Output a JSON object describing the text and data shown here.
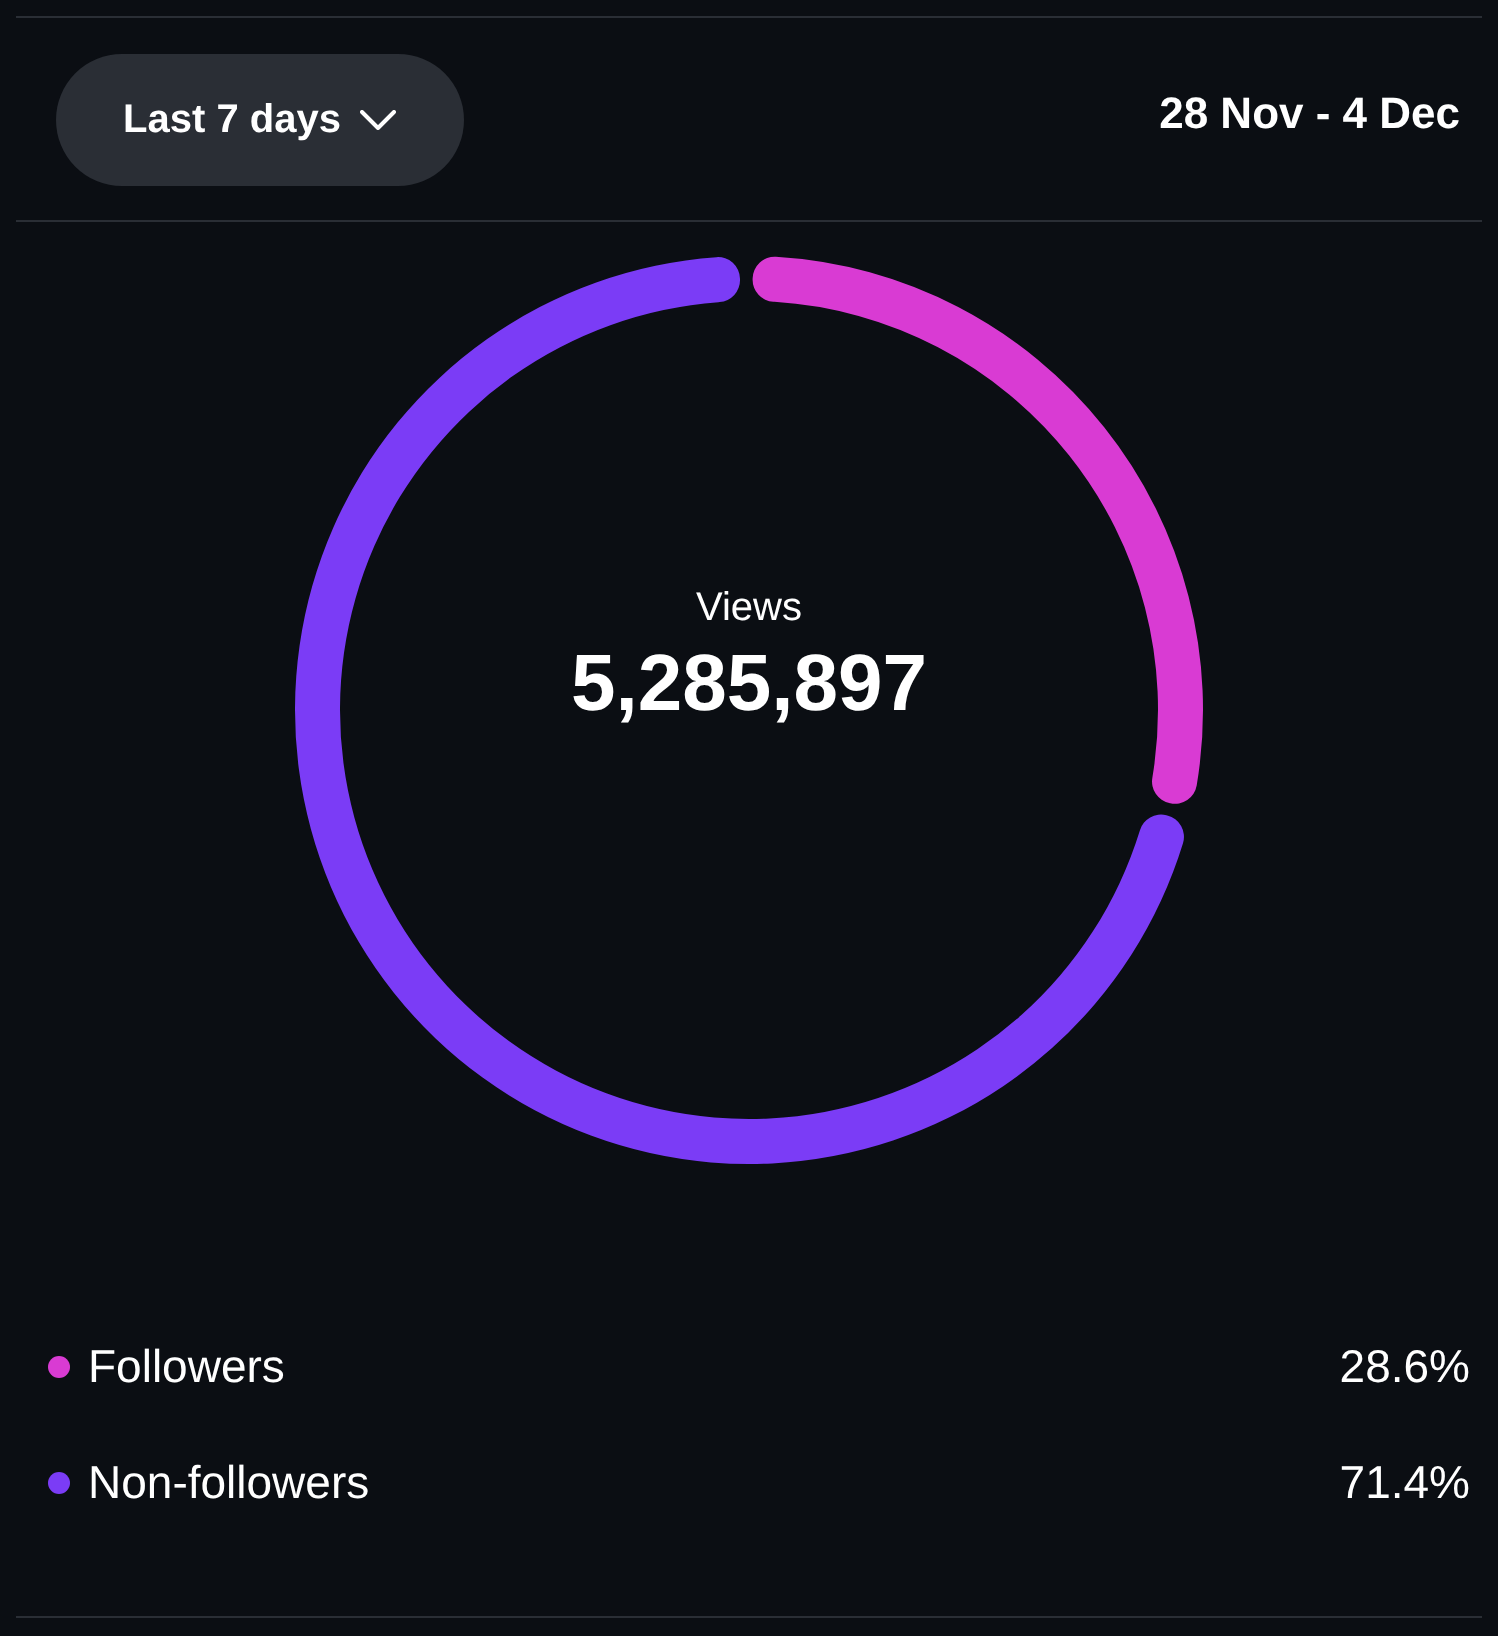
{
  "chart_data": {
    "type": "donut",
    "title": "Views",
    "subtitle": "5,285,897",
    "categories": [
      "Followers",
      "Non-followers"
    ],
    "values": [
      28.6,
      71.4
    ],
    "colors": [
      "#d93bd3",
      "#7b3cf6"
    ],
    "value_labels": [
      "28.6%",
      "71.4%"
    ],
    "legend": "bottom",
    "annotations": [
      "Last 7 days",
      "28 Nov - 4 Dec"
    ]
  }
}
